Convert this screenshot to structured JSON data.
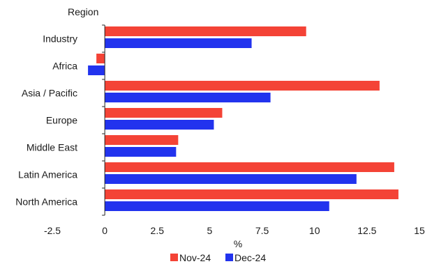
{
  "chart_data": {
    "type": "bar",
    "orientation": "horizontal",
    "y_axis_title": "Region",
    "xlabel": "%",
    "categories": [
      "Industry",
      "Africa",
      "Asia / Pacific",
      "Europe",
      "Middle East",
      "Latin America",
      "North America"
    ],
    "series": [
      {
        "name": "Nov-24",
        "color": "#f44336",
        "values": [
          9.6,
          -0.4,
          13.1,
          5.6,
          3.5,
          13.8,
          14.0
        ]
      },
      {
        "name": "Dec-24",
        "color": "#2233ee",
        "values": [
          7.0,
          -0.8,
          7.9,
          5.2,
          3.4,
          12.0,
          10.7
        ]
      }
    ],
    "xlim": [
      -2.5,
      15
    ],
    "xticks": [
      -2.5,
      0,
      2.5,
      5,
      7.5,
      10,
      12.5,
      15
    ],
    "xtick_labels": [
      "-2.5",
      "0",
      "2.5",
      "5",
      "7.5",
      "10",
      "12.5",
      "15"
    ],
    "grid": false,
    "legend": "bottom-center"
  }
}
